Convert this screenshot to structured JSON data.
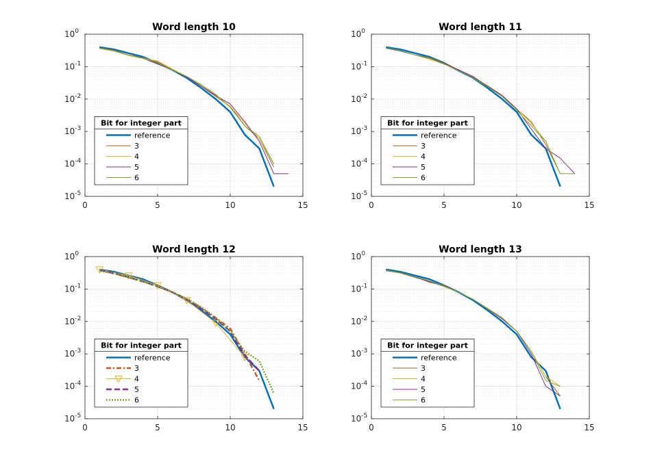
{
  "chart_data": [
    {
      "type": "line",
      "title": "Word length 10",
      "xlim": [
        0,
        15
      ],
      "ylim": [
        1e-05,
        1
      ],
      "yscale": "log",
      "xticks": [
        0,
        5,
        10,
        15
      ],
      "yticks": [
        {
          "base": "10",
          "exp": "-5"
        },
        {
          "base": "10",
          "exp": "-4"
        },
        {
          "base": "10",
          "exp": "-3"
        },
        {
          "base": "10",
          "exp": "-2"
        },
        {
          "base": "10",
          "exp": "-1"
        },
        {
          "base": "10",
          "exp": "0"
        }
      ],
      "grid": true,
      "legend": {
        "title": "Bit for integer part",
        "placement": "bottom-left"
      },
      "series": [
        {
          "name": "reference",
          "color": "#0072BD",
          "width": 2.5,
          "dash": "",
          "marker": "",
          "x": [
            1,
            2,
            3,
            4,
            5,
            6,
            7,
            8,
            9,
            10,
            11,
            12,
            13
          ],
          "y": [
            0.4,
            0.34,
            0.26,
            0.2,
            0.13,
            0.08,
            0.045,
            0.022,
            0.01,
            0.004,
            0.0008,
            0.0003,
            2e-05
          ]
        },
        {
          "name": "3",
          "color": "#A2621B",
          "width": 1,
          "dash": "",
          "marker": "",
          "x": [
            1,
            2,
            3,
            4,
            5,
            6,
            7,
            8,
            9,
            10,
            11,
            12,
            13
          ],
          "y": [
            0.38,
            0.32,
            0.23,
            0.19,
            0.14,
            0.08,
            0.048,
            0.025,
            0.012,
            0.006,
            0.0015,
            0.0006,
            8e-05
          ]
        },
        {
          "name": "4",
          "color": "#EDB120",
          "width": 1,
          "dash": "",
          "marker": "",
          "x": [
            1,
            2,
            3,
            4,
            5,
            6,
            7,
            8,
            9,
            10,
            11,
            12,
            13
          ],
          "y": [
            0.36,
            0.3,
            0.22,
            0.18,
            0.15,
            0.085,
            0.05,
            0.026,
            0.013,
            0.006,
            0.0018,
            0.0006,
            0.0001
          ]
        },
        {
          "name": "5",
          "color": "#7E2F8E",
          "width": 1,
          "dash": "",
          "marker": "",
          "x": [
            1,
            2,
            3,
            4,
            5,
            6,
            7,
            8,
            9,
            10,
            11,
            12,
            13,
            14
          ],
          "y": [
            0.37,
            0.31,
            0.23,
            0.18,
            0.12,
            0.08,
            0.048,
            0.025,
            0.013,
            0.007,
            0.002,
            0.0005,
            5e-05,
            5e-05
          ]
        },
        {
          "name": "6",
          "color": "#77AC30",
          "width": 1,
          "dash": "",
          "marker": "",
          "x": [
            1,
            2,
            3,
            4,
            5,
            6,
            7,
            8,
            9,
            10,
            11,
            12,
            13
          ],
          "y": [
            0.37,
            0.31,
            0.23,
            0.18,
            0.13,
            0.08,
            0.05,
            0.028,
            0.014,
            0.0055,
            0.0015,
            0.0007,
            0.0001
          ]
        }
      ]
    },
    {
      "type": "line",
      "title": "Word length 11",
      "xlim": [
        0,
        15
      ],
      "ylim": [
        1e-05,
        1
      ],
      "yscale": "log",
      "xticks": [
        0,
        5,
        10,
        15
      ],
      "yticks": [
        {
          "base": "10",
          "exp": "-5"
        },
        {
          "base": "10",
          "exp": "-4"
        },
        {
          "base": "10",
          "exp": "-3"
        },
        {
          "base": "10",
          "exp": "-2"
        },
        {
          "base": "10",
          "exp": "-1"
        },
        {
          "base": "10",
          "exp": "0"
        }
      ],
      "grid": true,
      "legend": {
        "title": "Bit for integer part",
        "placement": "bottom-left"
      },
      "series": [
        {
          "name": "reference",
          "color": "#0072BD",
          "width": 2.5,
          "dash": "",
          "marker": "",
          "x": [
            1,
            2,
            3,
            4,
            5,
            6,
            7,
            8,
            9,
            10,
            11,
            12,
            13
          ],
          "y": [
            0.4,
            0.34,
            0.26,
            0.2,
            0.13,
            0.075,
            0.045,
            0.022,
            0.01,
            0.004,
            0.0008,
            0.0003,
            2e-05
          ]
        },
        {
          "name": "3",
          "color": "#A2621B",
          "width": 1,
          "dash": "",
          "marker": "",
          "x": [
            1,
            2,
            3,
            4,
            5,
            6,
            7,
            8,
            9,
            10,
            11,
            12,
            13
          ],
          "y": [
            0.38,
            0.31,
            0.23,
            0.19,
            0.13,
            0.08,
            0.05,
            0.025,
            0.012,
            0.005,
            0.002,
            0.0004,
            5e-05
          ]
        },
        {
          "name": "4",
          "color": "#EDB120",
          "width": 1,
          "dash": "",
          "marker": "",
          "x": [
            1,
            2,
            3,
            4,
            5,
            6,
            7,
            8,
            9,
            10,
            11,
            12,
            13
          ],
          "y": [
            0.37,
            0.31,
            0.23,
            0.17,
            0.12,
            0.08,
            0.048,
            0.026,
            0.013,
            0.005,
            0.0018,
            0.0005,
            5e-05
          ]
        },
        {
          "name": "5",
          "color": "#7E2F8E",
          "width": 1,
          "dash": "",
          "marker": "",
          "x": [
            1,
            2,
            3,
            4,
            5,
            6,
            7,
            8,
            9,
            10,
            11,
            12,
            13,
            14
          ],
          "y": [
            0.37,
            0.3,
            0.23,
            0.18,
            0.12,
            0.08,
            0.048,
            0.025,
            0.013,
            0.005,
            0.0012,
            0.0003,
            0.00015,
            5e-05
          ]
        },
        {
          "name": "6",
          "color": "#77AC30",
          "width": 1,
          "dash": "",
          "marker": "",
          "x": [
            1,
            2,
            3,
            4,
            5,
            6,
            7,
            8,
            9,
            10,
            11,
            12,
            13,
            14
          ],
          "y": [
            0.38,
            0.31,
            0.23,
            0.18,
            0.12,
            0.075,
            0.046,
            0.024,
            0.012,
            0.0045,
            0.0015,
            0.0005,
            5e-05,
            5e-05
          ]
        }
      ]
    },
    {
      "type": "line",
      "title": "Word length 12",
      "xlim": [
        0,
        15
      ],
      "ylim": [
        1e-05,
        1
      ],
      "yscale": "log",
      "xticks": [
        0,
        5,
        10,
        15
      ],
      "yticks": [
        {
          "base": "10",
          "exp": "-5"
        },
        {
          "base": "10",
          "exp": "-4"
        },
        {
          "base": "10",
          "exp": "-3"
        },
        {
          "base": "10",
          "exp": "-2"
        },
        {
          "base": "10",
          "exp": "-1"
        },
        {
          "base": "10",
          "exp": "0"
        }
      ],
      "grid": true,
      "legend": {
        "title": "Bit for integer part",
        "placement": "bottom-left"
      },
      "series": [
        {
          "name": "reference",
          "color": "#0072BD",
          "width": 2.5,
          "dash": "",
          "marker": "",
          "x": [
            1,
            2,
            3,
            4,
            5,
            6,
            7,
            8,
            9,
            10,
            11,
            12,
            13
          ],
          "y": [
            0.4,
            0.34,
            0.26,
            0.2,
            0.13,
            0.08,
            0.045,
            0.022,
            0.01,
            0.004,
            0.0008,
            0.0003,
            2e-05
          ]
        },
        {
          "name": "3",
          "color": "#D95319",
          "width": 2.5,
          "dash": "7,3,2,3",
          "marker": "",
          "x": [
            1,
            2,
            3,
            4,
            5,
            6,
            7,
            8,
            9,
            10,
            11,
            12
          ],
          "y": [
            0.38,
            0.3,
            0.23,
            0.17,
            0.12,
            0.08,
            0.05,
            0.026,
            0.013,
            0.006,
            0.001,
            0.00015
          ]
        },
        {
          "name": "4",
          "color": "#EDB120",
          "width": 1,
          "dash": "",
          "marker": "triangle-down",
          "x": [
            1,
            3,
            5,
            7,
            9,
            11
          ],
          "y": [
            0.4,
            0.26,
            0.13,
            0.045,
            0.009,
            0.0008
          ]
        },
        {
          "name": "5",
          "color": "#7E2F8E",
          "width": 2.5,
          "dash": "8,4",
          "marker": "",
          "x": [
            1,
            2,
            3,
            4,
            5,
            6,
            7,
            8,
            9,
            10,
            11,
            12
          ],
          "y": [
            0.38,
            0.31,
            0.23,
            0.17,
            0.12,
            0.08,
            0.048,
            0.025,
            0.012,
            0.005,
            0.0009,
            0.0003
          ]
        },
        {
          "name": "6",
          "color": "#77AC30",
          "width": 2.5,
          "dash": "2,2",
          "marker": "",
          "x": [
            1,
            2,
            3,
            4,
            5,
            6,
            7,
            8,
            9,
            10,
            11,
            12,
            13
          ],
          "y": [
            0.37,
            0.3,
            0.23,
            0.17,
            0.12,
            0.08,
            0.05,
            0.028,
            0.013,
            0.005,
            0.0012,
            0.0006,
            6e-05
          ]
        }
      ]
    },
    {
      "type": "line",
      "title": "Word length 13",
      "xlim": [
        0,
        15
      ],
      "ylim": [
        1e-05,
        1
      ],
      "yscale": "log",
      "xticks": [
        0,
        5,
        10,
        15
      ],
      "yticks": [
        {
          "base": "10",
          "exp": "-5"
        },
        {
          "base": "10",
          "exp": "-4"
        },
        {
          "base": "10",
          "exp": "-3"
        },
        {
          "base": "10",
          "exp": "-2"
        },
        {
          "base": "10",
          "exp": "-1"
        },
        {
          "base": "10",
          "exp": "0"
        }
      ],
      "grid": true,
      "legend": {
        "title": "Bit for integer part",
        "placement": "bottom-left"
      },
      "series": [
        {
          "name": "reference",
          "color": "#0072BD",
          "width": 2.5,
          "dash": "",
          "marker": "",
          "x": [
            1,
            2,
            3,
            4,
            5,
            6,
            7,
            8,
            9,
            10,
            11,
            12,
            13
          ],
          "y": [
            0.4,
            0.34,
            0.26,
            0.2,
            0.13,
            0.08,
            0.045,
            0.022,
            0.01,
            0.004,
            0.0008,
            0.0003,
            2e-05
          ]
        },
        {
          "name": "3",
          "color": "#A2621B",
          "width": 1,
          "dash": "",
          "marker": "",
          "x": [
            1,
            2,
            3,
            4,
            5,
            6,
            7,
            8,
            9,
            10,
            11,
            12,
            13
          ],
          "y": [
            0.38,
            0.32,
            0.24,
            0.16,
            0.13,
            0.08,
            0.048,
            0.024,
            0.012,
            0.005,
            0.0012,
            0.0002,
            5e-05
          ]
        },
        {
          "name": "4",
          "color": "#EDB120",
          "width": 1,
          "dash": "",
          "marker": "",
          "x": [
            1,
            2,
            3,
            4,
            5,
            6,
            7,
            8,
            9,
            10,
            11,
            12,
            13
          ],
          "y": [
            0.37,
            0.31,
            0.23,
            0.17,
            0.12,
            0.08,
            0.048,
            0.025,
            0.013,
            0.005,
            0.0012,
            0.0002,
            0.0001
          ]
        },
        {
          "name": "5",
          "color": "#7E2F8E",
          "width": 1,
          "dash": "",
          "marker": "",
          "x": [
            1,
            2,
            3,
            4,
            5,
            6,
            7,
            8,
            9,
            10,
            11,
            12,
            13
          ],
          "y": [
            0.37,
            0.31,
            0.23,
            0.17,
            0.12,
            0.08,
            0.048,
            0.025,
            0.012,
            0.005,
            0.001,
            0.0001,
            5e-05
          ]
        },
        {
          "name": "6",
          "color": "#77AC30",
          "width": 1,
          "dash": "",
          "marker": "",
          "x": [
            1,
            2,
            3,
            4,
            5,
            6,
            7,
            8,
            9,
            10,
            11,
            12,
            13
          ],
          "y": [
            0.38,
            0.31,
            0.24,
            0.18,
            0.12,
            0.08,
            0.048,
            0.025,
            0.013,
            0.005,
            0.0012,
            0.00015,
            0.0001
          ]
        }
      ]
    }
  ]
}
